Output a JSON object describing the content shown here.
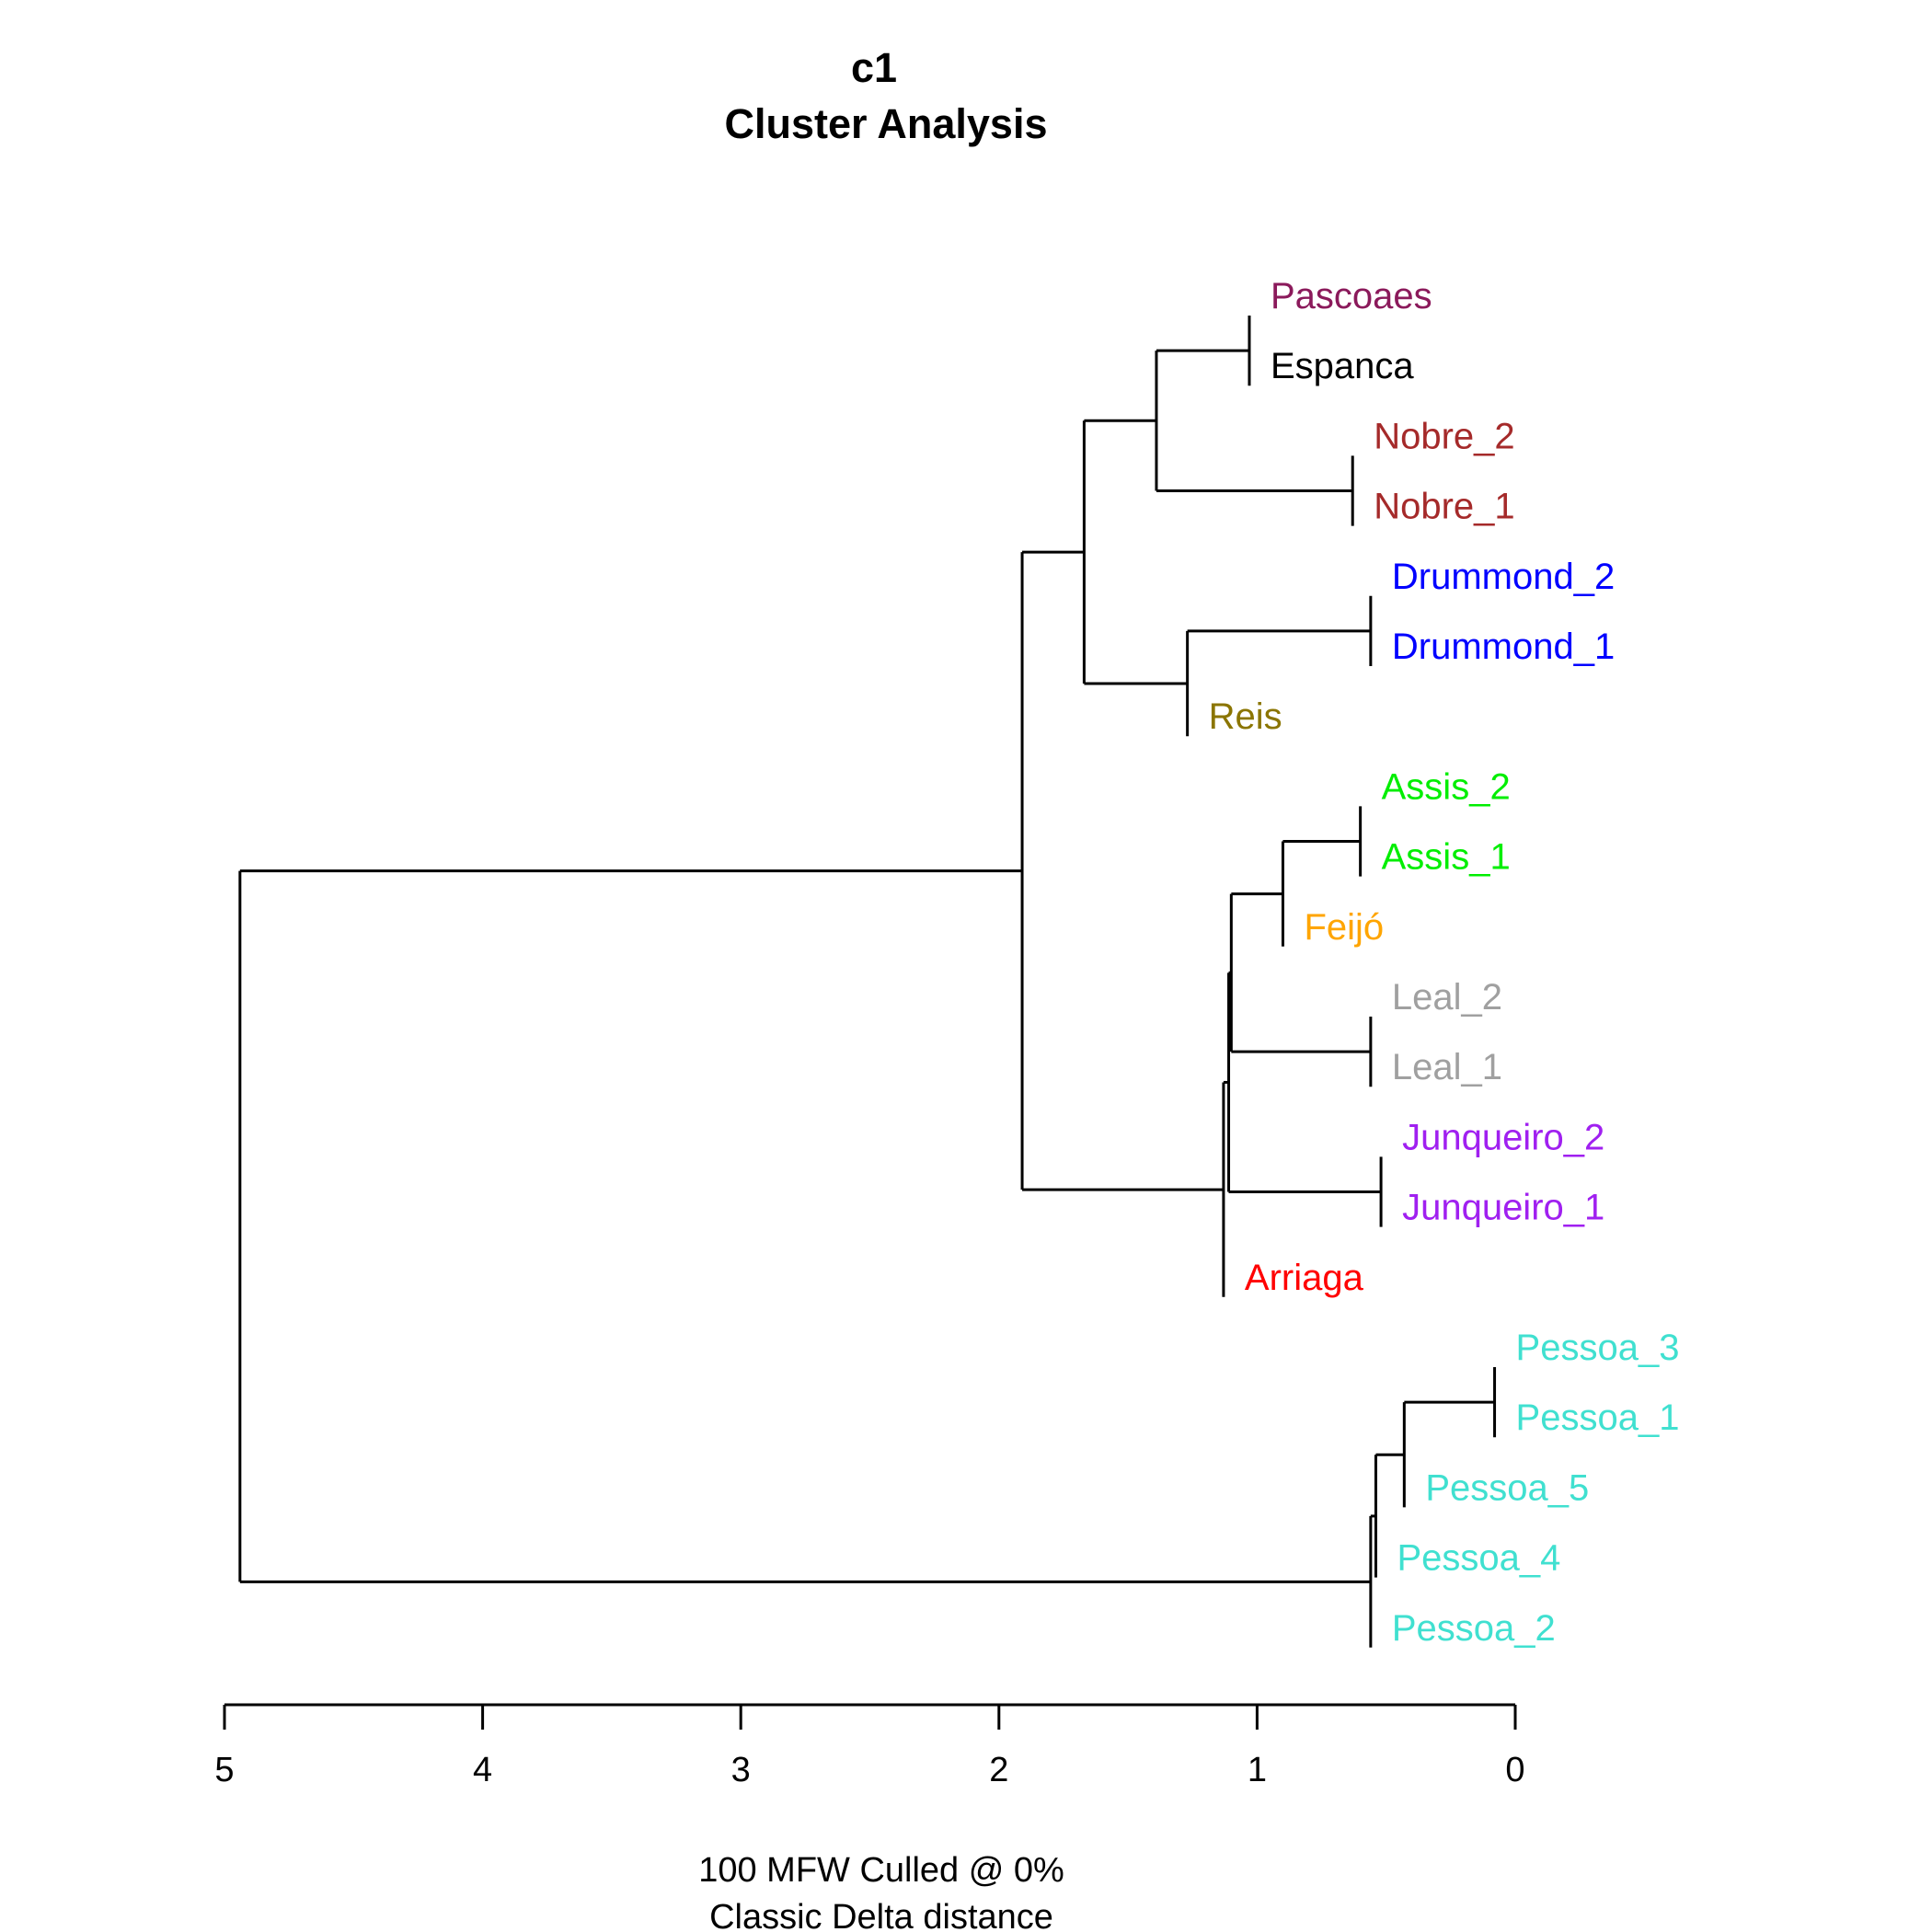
{
  "chart_data": {
    "type": "dendrogram",
    "title": "c1",
    "subtitle": "Cluster Analysis",
    "xlabel_line1": "100 MFW  Culled @ 0%",
    "xlabel_line2": "Classic Delta distance",
    "xlim": [
      5,
      0
    ],
    "ticks": [
      5,
      4,
      3,
      2,
      1,
      0
    ],
    "leaves": [
      {
        "name": "Pascoaes",
        "color": "#8B1A5B"
      },
      {
        "name": "Espanca",
        "color": "#000000"
      },
      {
        "name": "Nobre_2",
        "color": "#A52A2A"
      },
      {
        "name": "Nobre_1",
        "color": "#A52A2A"
      },
      {
        "name": "Drummond_2",
        "color": "#0000FF"
      },
      {
        "name": "Drummond_1",
        "color": "#0000FF"
      },
      {
        "name": "Reis",
        "color": "#8B7500"
      },
      {
        "name": "Assis_2",
        "color": "#00EE00"
      },
      {
        "name": "Assis_1",
        "color": "#00EE00"
      },
      {
        "name": "Feijó",
        "color": "#FFA500"
      },
      {
        "name": "Leal_2",
        "color": "#A0A0A0"
      },
      {
        "name": "Leal_1",
        "color": "#A0A0A0"
      },
      {
        "name": "Junqueiro_2",
        "color": "#A020F0"
      },
      {
        "name": "Junqueiro_1",
        "color": "#A020F0"
      },
      {
        "name": "Arriaga",
        "color": "#FF0000"
      },
      {
        "name": "Pessoa_3",
        "color": "#40E0D0"
      },
      {
        "name": "Pessoa_1",
        "color": "#40E0D0"
      },
      {
        "name": "Pessoa_5",
        "color": "#40E0D0"
      },
      {
        "name": "Pessoa_4",
        "color": "#40E0D0"
      },
      {
        "name": "Pessoa_2",
        "color": "#40E0D0"
      }
    ],
    "merges": [
      {
        "id": "m1",
        "children": [
          "Pascoaes",
          "Espanca"
        ],
        "height": 1.03
      },
      {
        "id": "m2",
        "children": [
          "Nobre_2",
          "Nobre_1"
        ],
        "height": 0.63
      },
      {
        "id": "m3",
        "children": [
          "m1",
          "m2"
        ],
        "height": 1.39
      },
      {
        "id": "m4",
        "children": [
          "Drummond_2",
          "Drummond_1"
        ],
        "height": 0.56
      },
      {
        "id": "m5",
        "children": [
          "Reis",
          "m4"
        ],
        "height": 1.27
      },
      {
        "id": "m6",
        "children": [
          "m3",
          "m5"
        ],
        "height": 1.67
      },
      {
        "id": "m7",
        "children": [
          "Assis_2",
          "Assis_1"
        ],
        "height": 0.6
      },
      {
        "id": "m8",
        "children": [
          "Feijó",
          "m7"
        ],
        "height": 0.9
      },
      {
        "id": "m9",
        "children": [
          "Leal_2",
          "Leal_1"
        ],
        "height": 0.56
      },
      {
        "id": "m10",
        "children": [
          "m8",
          "m9"
        ],
        "height": 1.1
      },
      {
        "id": "m11",
        "children": [
          "Junqueiro_2",
          "Junqueiro_1"
        ],
        "height": 0.52
      },
      {
        "id": "m12",
        "children": [
          "m10",
          "m11"
        ],
        "height": 1.11
      },
      {
        "id": "m13",
        "children": [
          "m12",
          "Arriaga"
        ],
        "height": 1.13
      },
      {
        "id": "m14",
        "children": [
          "m6",
          "m13"
        ],
        "height": 1.91
      },
      {
        "id": "m15",
        "children": [
          "Pessoa_3",
          "Pessoa_1"
        ],
        "height": 0.08
      },
      {
        "id": "m16",
        "children": [
          "m15",
          "Pessoa_5"
        ],
        "height": 0.43
      },
      {
        "id": "m17",
        "children": [
          "m16",
          "Pessoa_4"
        ],
        "height": 0.54
      },
      {
        "id": "m18",
        "children": [
          "m17",
          "Pessoa_2"
        ],
        "height": 0.56
      },
      {
        "id": "m19",
        "children": [
          "m14",
          "m18"
        ],
        "height": 4.94
      }
    ]
  }
}
